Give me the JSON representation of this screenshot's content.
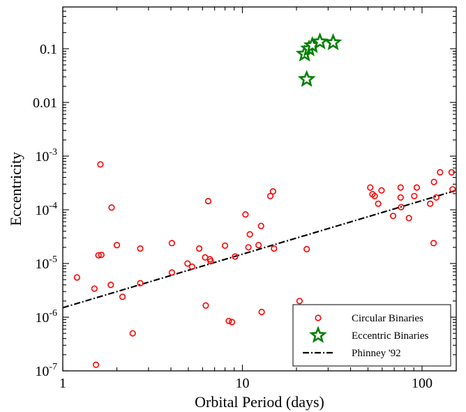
{
  "chart_data": {
    "type": "scatter",
    "title": "",
    "xlabel": "Orbital Period (days)",
    "ylabel": "Eccentricity",
    "xscale": "log",
    "yscale": "log",
    "xlim": [
      1,
      155
    ],
    "ylim": [
      1e-07,
      0.6
    ],
    "grid": false,
    "legend_position": "lower-right",
    "x_ticks": [
      {
        "value": 1,
        "label": "1"
      },
      {
        "value": 10,
        "label": "10"
      },
      {
        "value": 100,
        "label": "100"
      }
    ],
    "y_ticks": [
      {
        "value": 0.1,
        "label": "0.1",
        "exp": ""
      },
      {
        "value": 0.01,
        "label": "0.01",
        "exp": ""
      },
      {
        "value": 0.001,
        "label": "10",
        "exp": "-3"
      },
      {
        "value": 0.0001,
        "label": "10",
        "exp": "-4"
      },
      {
        "value": 1e-05,
        "label": "10",
        "exp": "-5"
      },
      {
        "value": 1e-06,
        "label": "10",
        "exp": "-6"
      },
      {
        "value": 1e-07,
        "label": "10",
        "exp": "-7"
      }
    ],
    "series": [
      {
        "name": "Circular Binaries",
        "marker": "circle",
        "color": "#ff0000",
        "points": [
          [
            1.2,
            5.5e-06
          ],
          [
            1.5,
            3.4e-06
          ],
          [
            1.53,
            1.3e-07
          ],
          [
            1.58,
            1.42e-05
          ],
          [
            1.62,
            0.0007
          ],
          [
            1.64,
            1.45e-05
          ],
          [
            1.85,
            4e-06
          ],
          [
            1.87,
            0.00011
          ],
          [
            2.0,
            2.2e-05
          ],
          [
            2.15,
            2.4e-06
          ],
          [
            2.45,
            5e-07
          ],
          [
            2.7,
            1.9e-05
          ],
          [
            2.7,
            4.3e-06
          ],
          [
            4.05,
            2.4e-05
          ],
          [
            4.05,
            6.8e-06
          ],
          [
            4.95,
            1e-05
          ],
          [
            5.25,
            8.7e-06
          ],
          [
            5.75,
            1.9e-05
          ],
          [
            6.2,
            1.3e-05
          ],
          [
            6.25,
            1.65e-06
          ],
          [
            6.45,
            0.000145
          ],
          [
            6.6,
            1.2e-05
          ],
          [
            6.65,
            1.1e-05
          ],
          [
            8.0,
            2.15e-05
          ],
          [
            8.4,
            8.5e-07
          ],
          [
            8.75,
            8.1e-07
          ],
          [
            9.1,
            1.35e-05
          ],
          [
            10.4,
            8.2e-05
          ],
          [
            10.8,
            2e-05
          ],
          [
            11.0,
            3.5e-05
          ],
          [
            12.3,
            2.2e-05
          ],
          [
            12.7,
            5e-05
          ],
          [
            12.8,
            1.25e-06
          ],
          [
            14.3,
            0.00018
          ],
          [
            14.8,
            0.00022
          ],
          [
            15.0,
            1.9e-05
          ],
          [
            20.8,
            2e-06
          ],
          [
            22.8,
            1.85e-05
          ],
          [
            51.5,
            0.00026
          ],
          [
            53.0,
            0.000195
          ],
          [
            54.5,
            0.00018
          ],
          [
            57.0,
            0.00013
          ],
          [
            59.5,
            0.00023
          ],
          [
            69.0,
            7.7e-05
          ],
          [
            76.0,
            0.00026
          ],
          [
            76.0,
            0.00017
          ],
          [
            76.5,
            0.000112
          ],
          [
            84.5,
            7e-05
          ],
          [
            90.5,
            0.00018
          ],
          [
            93.5,
            0.00026
          ],
          [
            111.0,
            0.00013
          ],
          [
            116.0,
            2.4e-05
          ],
          [
            116.5,
            0.00033
          ],
          [
            120.0,
            0.00017
          ],
          [
            126.0,
            0.0005
          ],
          [
            146.0,
            0.0005
          ],
          [
            148.0,
            0.00024
          ]
        ]
      },
      {
        "name": "Eccentric Binaries",
        "marker": "star",
        "color": "#008000",
        "points": [
          [
            22.2,
            0.08
          ],
          [
            22.8,
            0.027
          ],
          [
            23.5,
            0.1
          ],
          [
            24.5,
            0.115
          ],
          [
            27.0,
            0.135
          ],
          [
            32.0,
            0.13
          ]
        ]
      }
    ],
    "lines": [
      {
        "name": "Phinney '92",
        "style": "dashdot",
        "color": "#000000",
        "x": [
          1,
          155
        ],
        "y": [
          1.5e-06,
          0.00023
        ]
      }
    ]
  }
}
